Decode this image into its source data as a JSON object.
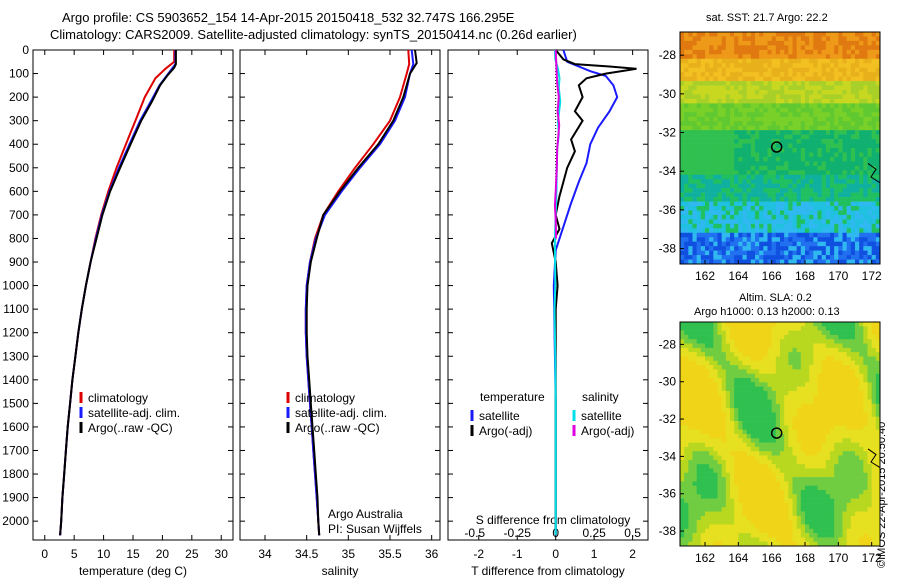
{
  "header": {
    "line1": "Argo profile: CS 5903652_154 14-Apr-2015 20150418_532 32.747S 166.295E",
    "line2": "Climatology: CARS2009. Satellite-adjusted climatology: synTS_20150414.nc (0.26d earlier)"
  },
  "credit": "©IMOS 22-Apr-2015 20:50:40",
  "colors": {
    "climatology": "#dd0000",
    "satellite": "#1a1aff",
    "argo": "#000000",
    "salinity_satellite": "#00e0e8",
    "salinity_argo": "#e000e0"
  },
  "chart_data": [
    {
      "type": "line",
      "panel": "temperature",
      "xlabel": "temperature (deg C)",
      "ylabel": "",
      "xlim": [
        -2,
        32
      ],
      "ylim": [
        2080,
        0
      ],
      "xticks": [
        0,
        5,
        10,
        15,
        20,
        25,
        30
      ],
      "yticks": [
        0,
        100,
        200,
        300,
        400,
        500,
        600,
        700,
        800,
        900,
        1000,
        1100,
        1200,
        1300,
        1400,
        1500,
        1600,
        1700,
        1800,
        1900,
        2000
      ],
      "legend": [
        "climatology",
        "satellite-adj. clim.",
        "Argo(..raw -QC)"
      ],
      "series": [
        {
          "name": "climatology",
          "color": "#dd0000",
          "points": [
            [
              22.0,
              0
            ],
            [
              22.0,
              50
            ],
            [
              20.5,
              80
            ],
            [
              18.8,
              120
            ],
            [
              17.0,
              200
            ],
            [
              15.4,
              300
            ],
            [
              13.8,
              400
            ],
            [
              12.2,
              500
            ],
            [
              10.8,
              600
            ],
            [
              9.6,
              700
            ],
            [
              8.6,
              800
            ],
            [
              7.8,
              900
            ],
            [
              7.0,
              1000
            ],
            [
              6.3,
              1100
            ],
            [
              5.7,
              1200
            ],
            [
              5.2,
              1300
            ],
            [
              4.7,
              1400
            ],
            [
              4.3,
              1500
            ],
            [
              3.9,
              1600
            ],
            [
              3.6,
              1700
            ],
            [
              3.3,
              1800
            ],
            [
              3.0,
              1900
            ],
            [
              2.8,
              2000
            ],
            [
              2.6,
              2060
            ]
          ]
        },
        {
          "name": "satellite-adj. clim.",
          "color": "#1a1aff",
          "points": [
            [
              22.2,
              0
            ],
            [
              22.2,
              60
            ],
            [
              21.0,
              100
            ],
            [
              19.5,
              150
            ],
            [
              18.0,
              220
            ],
            [
              16.2,
              300
            ],
            [
              14.4,
              400
            ],
            [
              12.6,
              500
            ],
            [
              11.0,
              600
            ],
            [
              9.7,
              700
            ],
            [
              8.7,
              800
            ],
            [
              7.8,
              900
            ],
            [
              7.0,
              1000
            ],
            [
              6.3,
              1100
            ],
            [
              5.7,
              1200
            ],
            [
              5.2,
              1300
            ],
            [
              4.7,
              1400
            ],
            [
              4.3,
              1500
            ],
            [
              3.9,
              1600
            ],
            [
              3.6,
              1700
            ],
            [
              3.3,
              1800
            ],
            [
              3.0,
              1900
            ],
            [
              2.8,
              2000
            ],
            [
              2.6,
              2060
            ]
          ]
        },
        {
          "name": "Argo(..raw -QC)",
          "color": "#000000",
          "points": [
            [
              22.3,
              0
            ],
            [
              22.3,
              60
            ],
            [
              22.0,
              75
            ],
            [
              20.8,
              110
            ],
            [
              19.6,
              150
            ],
            [
              18.2,
              220
            ],
            [
              16.4,
              300
            ],
            [
              14.6,
              400
            ],
            [
              12.8,
              500
            ],
            [
              11.1,
              600
            ],
            [
              9.8,
              700
            ],
            [
              8.8,
              800
            ],
            [
              7.8,
              900
            ],
            [
              7.0,
              1000
            ],
            [
              6.3,
              1100
            ],
            [
              5.7,
              1200
            ],
            [
              5.2,
              1300
            ],
            [
              4.7,
              1400
            ],
            [
              4.3,
              1500
            ],
            [
              3.9,
              1600
            ],
            [
              3.6,
              1700
            ],
            [
              3.3,
              1800
            ],
            [
              3.0,
              1900
            ],
            [
              2.8,
              2000
            ],
            [
              2.6,
              2060
            ]
          ]
        }
      ]
    },
    {
      "type": "line",
      "panel": "salinity",
      "xlabel": "salinity",
      "ylabel": "",
      "xlim": [
        33.7,
        36.1
      ],
      "ylim": [
        2080,
        0
      ],
      "xticks": [
        34,
        34.5,
        35,
        35.5,
        36
      ],
      "legend": [
        "climatology",
        "satellite-adj. clim.",
        "Argo(..raw -QC)"
      ],
      "annotation": [
        "Argo Australia",
        "PI: Susan Wijffels"
      ],
      "series": [
        {
          "name": "climatology",
          "color": "#dd0000",
          "points": [
            [
              35.72,
              0
            ],
            [
              35.73,
              60
            ],
            [
              35.7,
              100
            ],
            [
              35.62,
              200
            ],
            [
              35.5,
              300
            ],
            [
              35.3,
              400
            ],
            [
              35.08,
              500
            ],
            [
              34.88,
              600
            ],
            [
              34.7,
              700
            ],
            [
              34.6,
              800
            ],
            [
              34.54,
              900
            ],
            [
              34.5,
              1000
            ],
            [
              34.49,
              1100
            ],
            [
              34.49,
              1200
            ],
            [
              34.5,
              1300
            ],
            [
              34.52,
              1400
            ],
            [
              34.54,
              1500
            ],
            [
              34.56,
              1600
            ],
            [
              34.58,
              1700
            ],
            [
              34.6,
              1800
            ],
            [
              34.62,
              1900
            ],
            [
              34.64,
              2000
            ],
            [
              34.65,
              2060
            ]
          ]
        },
        {
          "name": "satellite-adj. clim.",
          "color": "#1a1aff",
          "points": [
            [
              35.76,
              0
            ],
            [
              35.78,
              60
            ],
            [
              35.74,
              100
            ],
            [
              35.68,
              200
            ],
            [
              35.56,
              300
            ],
            [
              35.38,
              400
            ],
            [
              35.14,
              500
            ],
            [
              34.92,
              600
            ],
            [
              34.72,
              700
            ],
            [
              34.61,
              800
            ],
            [
              34.54,
              900
            ],
            [
              34.5,
              1000
            ],
            [
              34.49,
              1100
            ],
            [
              34.49,
              1200
            ],
            [
              34.5,
              1300
            ],
            [
              34.52,
              1400
            ],
            [
              34.54,
              1500
            ],
            [
              34.56,
              1600
            ],
            [
              34.58,
              1700
            ],
            [
              34.6,
              1800
            ],
            [
              34.62,
              1900
            ],
            [
              34.64,
              2000
            ],
            [
              34.65,
              2060
            ]
          ]
        },
        {
          "name": "Argo(..raw -QC)",
          "color": "#000000",
          "points": [
            [
              35.8,
              0
            ],
            [
              35.82,
              55
            ],
            [
              35.74,
              100
            ],
            [
              35.7,
              150
            ],
            [
              35.66,
              200
            ],
            [
              35.54,
              300
            ],
            [
              35.36,
              400
            ],
            [
              35.12,
              500
            ],
            [
              34.9,
              600
            ],
            [
              34.7,
              700
            ],
            [
              34.62,
              800
            ],
            [
              34.55,
              900
            ],
            [
              34.51,
              1000
            ],
            [
              34.5,
              1100
            ],
            [
              34.5,
              1200
            ],
            [
              34.51,
              1300
            ],
            [
              34.53,
              1400
            ],
            [
              34.55,
              1500
            ],
            [
              34.57,
              1600
            ],
            [
              34.59,
              1700
            ],
            [
              34.61,
              1800
            ],
            [
              34.63,
              1900
            ],
            [
              34.64,
              2000
            ],
            [
              34.65,
              2060
            ]
          ]
        }
      ]
    },
    {
      "type": "line",
      "panel": "difference",
      "xlabel": "T difference from climatology",
      "xlabel_top": "S difference from climatology",
      "ylabel": "",
      "xlim": [
        -2.8,
        2.4
      ],
      "ylim": [
        2080,
        0
      ],
      "xticks": [
        -2,
        -1,
        0,
        1,
        2
      ],
      "sticks": [
        "-0.5",
        "-0.25",
        "0",
        "0.25",
        "0.5"
      ],
      "legend_left_title": "temperature",
      "legend_right_title": "salinity",
      "legend_left": [
        "satellite",
        "Argo(-adj)"
      ],
      "legend_right": [
        "satellite",
        "Argo(-adj)"
      ],
      "series": [
        {
          "name": "temperature satellite",
          "color": "#1a1aff",
          "points": [
            [
              0.2,
              0
            ],
            [
              0.3,
              50
            ],
            [
              0.9,
              90
            ],
            [
              1.3,
              110
            ],
            [
              1.5,
              150
            ],
            [
              1.6,
              200
            ],
            [
              1.4,
              260
            ],
            [
              1.1,
              330
            ],
            [
              0.9,
              400
            ],
            [
              0.8,
              480
            ],
            [
              0.6,
              560
            ],
            [
              0.4,
              650
            ],
            [
              0.2,
              750
            ],
            [
              0.0,
              850
            ],
            [
              -0.05,
              1000
            ],
            [
              0.0,
              1500
            ],
            [
              0.0,
              2060
            ]
          ]
        },
        {
          "name": "temperature Argo(-adj)",
          "color": "#000000",
          "points": [
            [
              0.0,
              0
            ],
            [
              0.2,
              40
            ],
            [
              0.5,
              60
            ],
            [
              1.4,
              70
            ],
            [
              2.1,
              80
            ],
            [
              1.3,
              100
            ],
            [
              0.8,
              120
            ],
            [
              0.6,
              150
            ],
            [
              0.7,
              200
            ],
            [
              0.5,
              260
            ],
            [
              0.7,
              300
            ],
            [
              0.4,
              380
            ],
            [
              0.5,
              430
            ],
            [
              0.3,
              500
            ],
            [
              0.2,
              560
            ],
            [
              0.1,
              620
            ],
            [
              0.0,
              700
            ],
            [
              0.1,
              760
            ],
            [
              -0.1,
              820
            ],
            [
              0.0,
              900
            ],
            [
              0.05,
              1000
            ],
            [
              0.0,
              1100
            ],
            [
              0.0,
              1300
            ],
            [
              0.0,
              1500
            ],
            [
              0.0,
              2060
            ]
          ]
        },
        {
          "name": "salinity satellite",
          "color": "#00e0e8",
          "points": [
            [
              -0.02,
              0
            ],
            [
              -0.01,
              40
            ],
            [
              0.06,
              80
            ],
            [
              0.1,
              120
            ],
            [
              0.08,
              160
            ],
            [
              0.12,
              220
            ],
            [
              0.06,
              300
            ],
            [
              0.08,
              360
            ],
            [
              0.04,
              420
            ],
            [
              0.03,
              500
            ],
            [
              0.02,
              600
            ],
            [
              0.0,
              700
            ],
            [
              -0.02,
              800
            ],
            [
              -0.01,
              1000
            ],
            [
              -0.03,
              1100
            ],
            [
              -0.01,
              1300
            ],
            [
              0.0,
              1500
            ],
            [
              0.0,
              2060
            ]
          ]
        },
        {
          "name": "salinity Argo(-adj)",
          "color": "#e000e0",
          "points": [
            [
              0.0,
              0
            ],
            [
              0.02,
              80
            ],
            [
              0.04,
              140
            ],
            [
              0.08,
              200
            ],
            [
              0.05,
              260
            ],
            [
              0.09,
              320
            ],
            [
              0.04,
              420
            ],
            [
              0.03,
              500
            ],
            [
              0.0,
              600
            ],
            [
              -0.02,
              660
            ],
            [
              0.0,
              720
            ],
            [
              0.01,
              800
            ]
          ]
        }
      ]
    }
  ],
  "maps": {
    "sst": {
      "title": "sat. SST: 21.7 Argo: 22.2",
      "xticks": [
        "162",
        "164",
        "166",
        "168",
        "170",
        "172"
      ],
      "yticks": [
        "-28",
        "-30",
        "-32",
        "-34",
        "-36",
        "-38"
      ],
      "xlim": [
        160.5,
        172.5
      ],
      "ylim": [
        -38.8,
        -26.8
      ],
      "marker": {
        "lon": 166.3,
        "lat": -32.75
      }
    },
    "sla": {
      "title_line1": "Altim. SLA: 0.2",
      "title_line2": "Argo h1000: 0.13 h2000: 0.13",
      "xticks": [
        "162",
        "164",
        "166",
        "168",
        "170",
        "172"
      ],
      "yticks": [
        "-28",
        "-30",
        "-32",
        "-34",
        "-36",
        "-38"
      ],
      "xlim": [
        160.5,
        172.5
      ],
      "ylim": [
        -38.8,
        -26.8
      ],
      "marker": {
        "lon": 166.3,
        "lat": -32.75
      }
    }
  }
}
